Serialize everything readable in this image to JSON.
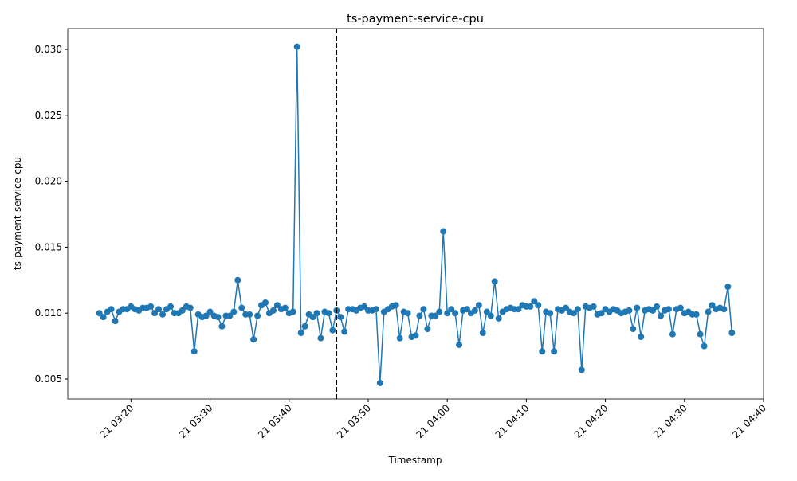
{
  "chart_data": {
    "type": "line",
    "title": "ts-payment-service-cpu",
    "x_label": "Timestamp",
    "y_label": "ts-payment-service-cpu",
    "color": "#1f77b4",
    "x": [
      "21 03:16:00",
      "21 03:16:30",
      "21 03:17:00",
      "21 03:17:30",
      "21 03:18:00",
      "21 03:18:30",
      "21 03:19:00",
      "21 03:19:30",
      "21 03:20:00",
      "21 03:20:30",
      "21 03:21:00",
      "21 03:21:30",
      "21 03:22:00",
      "21 03:22:30",
      "21 03:23:00",
      "21 03:23:30",
      "21 03:24:00",
      "21 03:24:30",
      "21 03:25:00",
      "21 03:25:30",
      "21 03:26:00",
      "21 03:26:30",
      "21 03:27:00",
      "21 03:27:30",
      "21 03:28:00",
      "21 03:28:30",
      "21 03:29:00",
      "21 03:29:30",
      "21 03:30:00",
      "21 03:30:30",
      "21 03:31:00",
      "21 03:31:30",
      "21 03:32:00",
      "21 03:32:30",
      "21 03:33:00",
      "21 03:33:30",
      "21 03:34:00",
      "21 03:34:30",
      "21 03:35:00",
      "21 03:35:30",
      "21 03:36:00",
      "21 03:36:30",
      "21 03:37:00",
      "21 03:37:30",
      "21 03:38:00",
      "21 03:38:30",
      "21 03:39:00",
      "21 03:39:30",
      "21 03:40:00",
      "21 03:40:30",
      "21 03:41:00",
      "21 03:41:30",
      "21 03:42:00",
      "21 03:42:30",
      "21 03:43:00",
      "21 03:43:30",
      "21 03:44:00",
      "21 03:44:30",
      "21 03:45:00",
      "21 03:45:30",
      "21 03:46:00",
      "21 03:46:30",
      "21 03:47:00",
      "21 03:47:30",
      "21 03:48:00",
      "21 03:48:30",
      "21 03:49:00",
      "21 03:49:30",
      "21 03:50:00",
      "21 03:50:30",
      "21 03:51:00",
      "21 03:51:30",
      "21 03:52:00",
      "21 03:52:30",
      "21 03:53:00",
      "21 03:53:30",
      "21 03:54:00",
      "21 03:54:30",
      "21 03:55:00",
      "21 03:55:30",
      "21 03:56:00",
      "21 03:56:30",
      "21 03:57:00",
      "21 03:57:30",
      "21 03:58:00",
      "21 03:58:30",
      "21 03:59:00",
      "21 03:59:30",
      "21 04:00:00",
      "21 04:00:30",
      "21 04:01:00",
      "21 04:01:30",
      "21 04:02:00",
      "21 04:02:30",
      "21 04:03:00",
      "21 04:03:30",
      "21 04:04:00",
      "21 04:04:30",
      "21 04:05:00",
      "21 04:05:30",
      "21 04:06:00",
      "21 04:06:30",
      "21 04:07:00",
      "21 04:07:30",
      "21 04:08:00",
      "21 04:08:30",
      "21 04:09:00",
      "21 04:09:30",
      "21 04:10:00",
      "21 04:10:30",
      "21 04:11:00",
      "21 04:11:30",
      "21 04:12:00",
      "21 04:12:30",
      "21 04:13:00",
      "21 04:13:30",
      "21 04:14:00",
      "21 04:14:30",
      "21 04:15:00",
      "21 04:15:30",
      "21 04:16:00",
      "21 04:16:30",
      "21 04:17:00",
      "21 04:17:30",
      "21 04:18:00",
      "21 04:18:30",
      "21 04:19:00",
      "21 04:19:30",
      "21 04:20:00",
      "21 04:20:30",
      "21 04:21:00",
      "21 04:21:30",
      "21 04:22:00",
      "21 04:22:30",
      "21 04:23:00",
      "21 04:23:30",
      "21 04:24:00",
      "21 04:24:30",
      "21 04:25:00",
      "21 04:25:30",
      "21 04:26:00",
      "21 04:26:30",
      "21 04:27:00",
      "21 04:27:30",
      "21 04:28:00",
      "21 04:28:30",
      "21 04:29:00",
      "21 04:29:30",
      "21 04:30:00",
      "21 04:30:30",
      "21 04:31:00",
      "21 04:31:30",
      "21 04:32:00",
      "21 04:32:30",
      "21 04:33:00",
      "21 04:33:30",
      "21 04:34:00",
      "21 04:34:30",
      "21 04:35:00",
      "21 04:35:30",
      "21 04:36:00"
    ],
    "values": [
      0.01,
      0.0097,
      0.0101,
      0.0103,
      0.0094,
      0.0101,
      0.0103,
      0.0103,
      0.0105,
      0.0103,
      0.0102,
      0.0104,
      0.0104,
      0.0105,
      0.01,
      0.0103,
      0.0099,
      0.0103,
      0.0105,
      0.01,
      0.01,
      0.0102,
      0.0105,
      0.0104,
      0.0071,
      0.0099,
      0.0097,
      0.0098,
      0.0101,
      0.0098,
      0.0097,
      0.009,
      0.0098,
      0.0098,
      0.0101,
      0.0125,
      0.0104,
      0.0099,
      0.0099,
      0.008,
      0.0098,
      0.0106,
      0.0108,
      0.01,
      0.0102,
      0.0106,
      0.0103,
      0.0104,
      0.01,
      0.0101,
      0.0302,
      0.0085,
      0.009,
      0.0099,
      0.0097,
      0.01,
      0.0081,
      0.0101,
      0.01,
      0.0087,
      0.0102,
      0.0097,
      0.0086,
      0.0103,
      0.0103,
      0.0102,
      0.0104,
      0.0105,
      0.0102,
      0.0102,
      0.0103,
      0.0047,
      0.0101,
      0.0103,
      0.0105,
      0.0106,
      0.0081,
      0.0101,
      0.01,
      0.0082,
      0.0083,
      0.0098,
      0.0103,
      0.0088,
      0.0098,
      0.0098,
      0.0101,
      0.0162,
      0.01,
      0.0103,
      0.01,
      0.0076,
      0.0102,
      0.0103,
      0.01,
      0.0102,
      0.0106,
      0.0085,
      0.0101,
      0.0098,
      0.0124,
      0.0096,
      0.0101,
      0.0103,
      0.0104,
      0.0103,
      0.0103,
      0.0106,
      0.0105,
      0.0105,
      0.0109,
      0.0106,
      0.0071,
      0.0101,
      0.01,
      0.0071,
      0.0103,
      0.0102,
      0.0104,
      0.0101,
      0.01,
      0.0103,
      0.0057,
      0.0105,
      0.0104,
      0.0105,
      0.0099,
      0.01,
      0.0103,
      0.0101,
      0.0103,
      0.0102,
      0.01,
      0.0101,
      0.0102,
      0.0088,
      0.0104,
      0.0082,
      0.0102,
      0.0103,
      0.0102,
      0.0105,
      0.0098,
      0.0102,
      0.0103,
      0.0084,
      0.0103,
      0.0104,
      0.01,
      0.0101,
      0.0099,
      0.0099,
      0.0084,
      0.0075,
      0.0101,
      0.0106,
      0.0103,
      0.0104,
      0.0103,
      0.012,
      0.0085
    ],
    "vline": {
      "x": "21 03:46:00",
      "color": "#000000",
      "style": "dashed"
    },
    "xlim": [
      "21 03:12:00",
      "21 04:40:00"
    ],
    "xticks": [
      "21 03:20",
      "21 03:30",
      "21 03:40",
      "21 03:50",
      "21 04:00",
      "21 04:10",
      "21 04:20",
      "21 04:30",
      "21 04:40"
    ],
    "ylim": [
      0.00349,
      0.03157
    ],
    "yticks": [
      0.005,
      {
        "value": 0.01,
        "label": "0.010"
      },
      0.015,
      {
        "value": 0.02,
        "label": "0.020"
      },
      0.025,
      {
        "value": 0.03,
        "label": "0.030"
      }
    ]
  }
}
